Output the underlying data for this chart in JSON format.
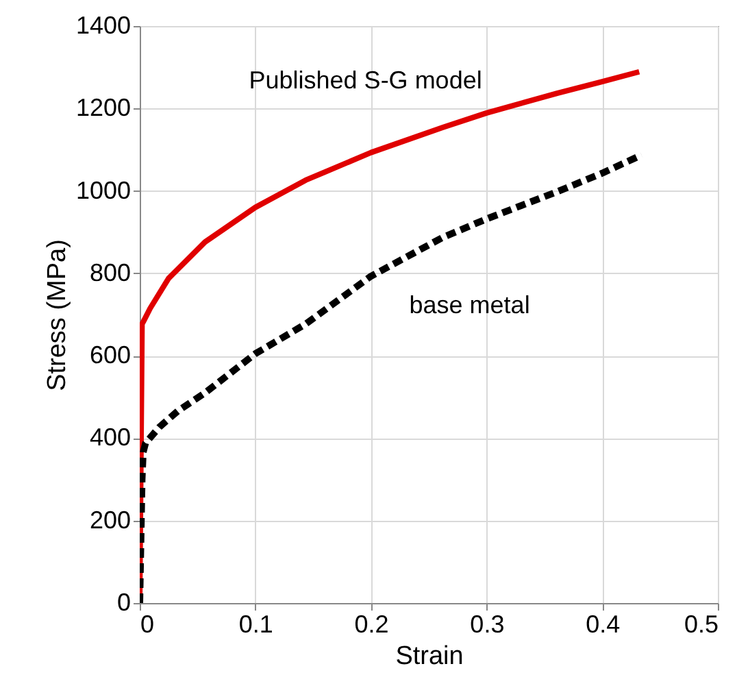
{
  "chart_data": {
    "type": "line",
    "xlabel": "Strain",
    "ylabel": "Stress (MPa)",
    "xlim": [
      0,
      0.5
    ],
    "xticks": [
      0,
      0.1,
      0.2,
      0.3,
      0.4,
      0.5
    ],
    "ylim": [
      0,
      1400
    ],
    "yticks": [
      0,
      200,
      400,
      600,
      800,
      1000,
      1200,
      1400
    ],
    "grid": true,
    "series": [
      {
        "name": "Published S-G model",
        "color": "#e00000",
        "line_style": "solid",
        "x": [
          0,
          0.002,
          0.003,
          0.009,
          0.025,
          0.0565,
          0.1,
          0.1435,
          0.2,
          0.262,
          0.3,
          0.361,
          0.4,
          0.432
        ],
        "values": [
          0,
          677,
          682,
          715,
          788,
          876,
          960,
          1026,
          1093,
          1154,
          1189,
          1237,
          1265,
          1289
        ]
      },
      {
        "name": "base metal",
        "color": "#000000",
        "line_style": "dashed",
        "x": [
          0,
          0.002,
          0.003,
          0.005,
          0.017,
          0.033,
          0.0565,
          0.1,
          0.1435,
          0.2,
          0.262,
          0.3,
          0.361,
          0.4,
          0.434
        ],
        "values": [
          0,
          300,
          366,
          388,
          427,
          466,
          510,
          605,
          677,
          793,
          887,
          932,
          998,
          1043,
          1087
        ]
      }
    ]
  }
}
